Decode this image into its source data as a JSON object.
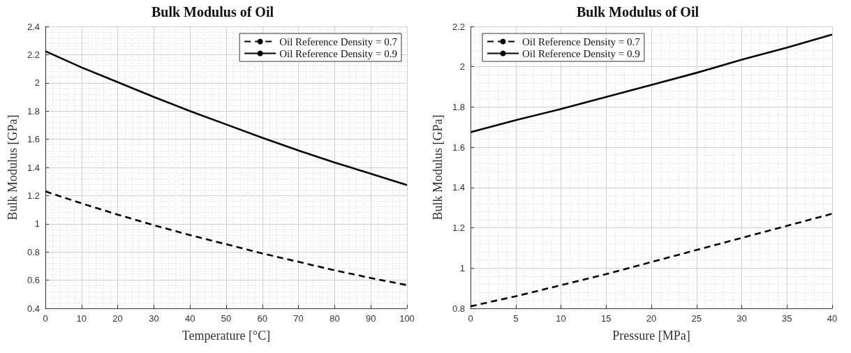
{
  "chart_data": [
    {
      "type": "line",
      "title": "Bulk Modulus of Oil",
      "xlabel": "Temperature [°C]",
      "ylabel": "Bulk Modulus [GPa]",
      "x": [
        0,
        10,
        20,
        30,
        40,
        50,
        60,
        70,
        80,
        90,
        100
      ],
      "series": [
        {
          "name": "Oil Reference Density = 0.7",
          "color": "#000000",
          "line_style": "dashed",
          "values": [
            1.23,
            1.145,
            1.065,
            0.99,
            0.92,
            0.855,
            0.79,
            0.73,
            0.67,
            0.615,
            0.565
          ]
        },
        {
          "name": "Oil Reference Density = 0.9",
          "color": "#000000",
          "line_style": "solid",
          "values": [
            2.225,
            2.11,
            2.005,
            1.9,
            1.8,
            1.705,
            1.61,
            1.52,
            1.435,
            1.355,
            1.275
          ]
        }
      ],
      "xlim": [
        0,
        100
      ],
      "xticks": [
        0,
        10,
        20,
        30,
        40,
        50,
        60,
        70,
        80,
        90,
        100
      ],
      "ylim": [
        0.4,
        2.4
      ],
      "yticks": [
        0.4,
        0.6,
        0.8,
        1,
        1.2,
        1.4,
        1.6,
        1.8,
        2,
        2.2,
        2.4
      ],
      "grid": true,
      "legend": "top right",
      "marker": "none"
    },
    {
      "type": "line",
      "title": "Bulk Modulus of Oil",
      "xlabel": "Pressure [MPa]",
      "ylabel": "Bulk Modulus [GPa]",
      "x": [
        0,
        5,
        10,
        15,
        20,
        25,
        30,
        35,
        40
      ],
      "series": [
        {
          "name": "Oil Reference Density = 0.7",
          "color": "#000000",
          "line_style": "dashed",
          "values": [
            0.81,
            0.86,
            0.915,
            0.97,
            1.03,
            1.09,
            1.15,
            1.21,
            1.27
          ]
        },
        {
          "name": "Oil Reference Density = 0.9",
          "color": "#000000",
          "line_style": "solid",
          "values": [
            1.675,
            1.735,
            1.79,
            1.85,
            1.91,
            1.97,
            2.035,
            2.095,
            2.16
          ]
        }
      ],
      "xlim": [
        0,
        40
      ],
      "xticks": [
        0,
        5,
        10,
        15,
        20,
        25,
        30,
        35,
        40
      ],
      "ylim": [
        0.8,
        2.2
      ],
      "yticks": [
        0.8,
        1,
        1.2,
        1.4,
        1.6,
        1.8,
        2,
        2.2
      ],
      "grid": true,
      "legend": "top left",
      "marker": "none"
    }
  ]
}
